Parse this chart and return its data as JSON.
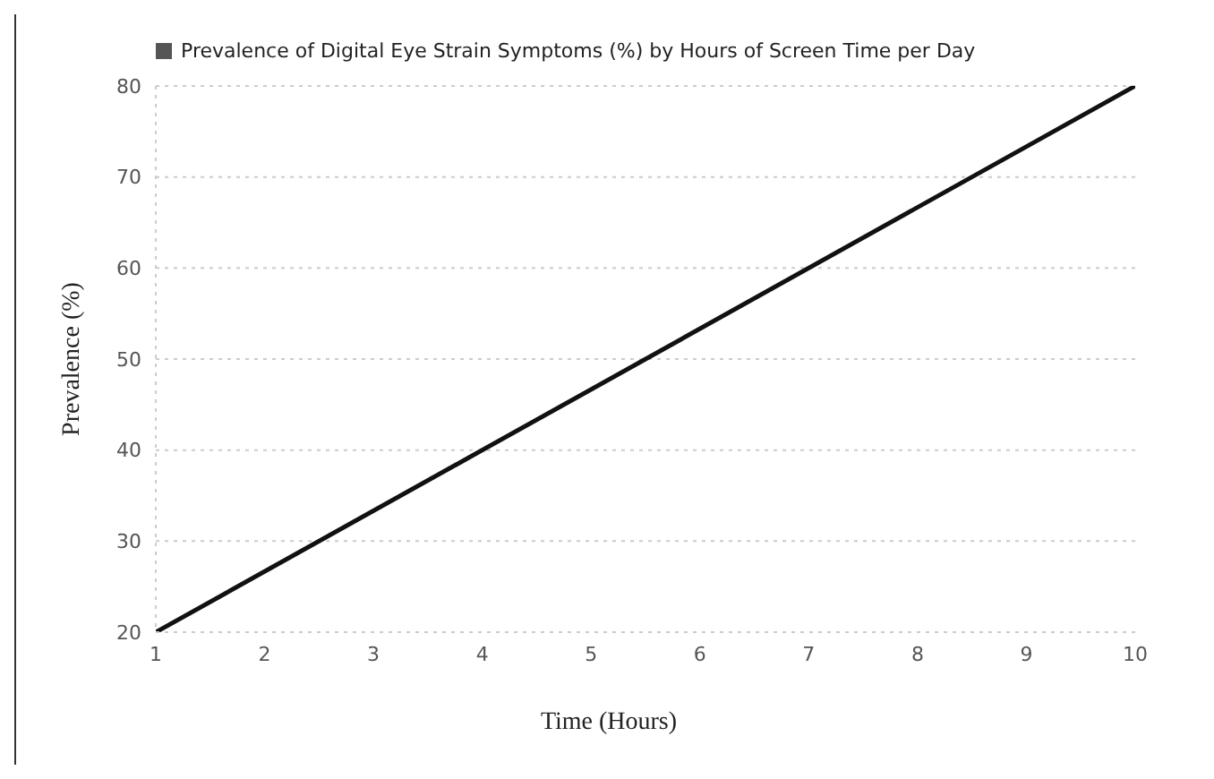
{
  "chart_data": {
    "type": "line",
    "title": "Prevalence of Digital Eye Strain Symptoms (%) by Hours of Screen Time per Day",
    "xlabel": "Time (Hours)",
    "ylabel": "Prevalence (%)",
    "x": [
      1,
      10
    ],
    "series": [
      {
        "color": "#111111",
        "values": [
          20,
          80
        ]
      }
    ],
    "xlim": [
      1,
      10
    ],
    "xticks": [
      1,
      2,
      3,
      4,
      5,
      6,
      7,
      8,
      9,
      10
    ],
    "ylim": [
      20,
      80
    ],
    "yticks": [
      20,
      30,
      40,
      50,
      60,
      70,
      80
    ],
    "grid": "y",
    "marker": "none",
    "line_style": "solid"
  }
}
